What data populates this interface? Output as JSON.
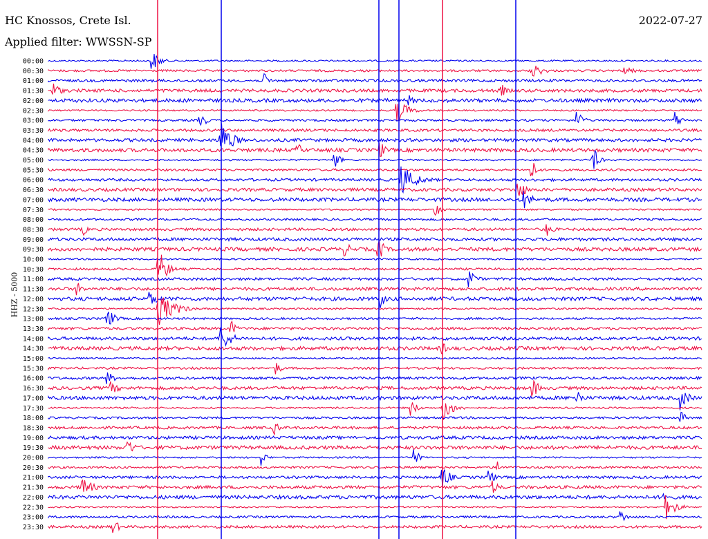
{
  "header": {
    "station": "HC Knossos, Crete Isl.",
    "filter": "Applied filter: WWSSN-SP",
    "date": "2022-07-27"
  },
  "colors": {
    "trace_a": "#0000ee",
    "trace_b": "#ee1144",
    "text": "#000000",
    "background": "#ffffff"
  },
  "chart_data": {
    "type": "seismogram",
    "ylabel": "HHZ - 5000",
    "row_labels": [
      "00:00",
      "00:30",
      "01:00",
      "01:30",
      "02:00",
      "02:30",
      "03:00",
      "03:30",
      "04:00",
      "04:30",
      "05:00",
      "05:30",
      "06:00",
      "06:30",
      "07:00",
      "07:30",
      "08:00",
      "08:30",
      "09:00",
      "09:30",
      "10:00",
      "10:30",
      "11:00",
      "11:30",
      "12:00",
      "12:30",
      "13:00",
      "13:30",
      "14:00",
      "14:30",
      "15:00",
      "15:30",
      "16:00",
      "16:30",
      "17:00",
      "17:30",
      "18:00",
      "18:30",
      "19:00",
      "19:30",
      "20:00",
      "20:30",
      "21:00",
      "21:30",
      "22:00",
      "22:30",
      "23:00",
      "23:30"
    ],
    "trace_colors": [
      "#0000ee",
      "#ee1144"
    ],
    "grid": false
  }
}
